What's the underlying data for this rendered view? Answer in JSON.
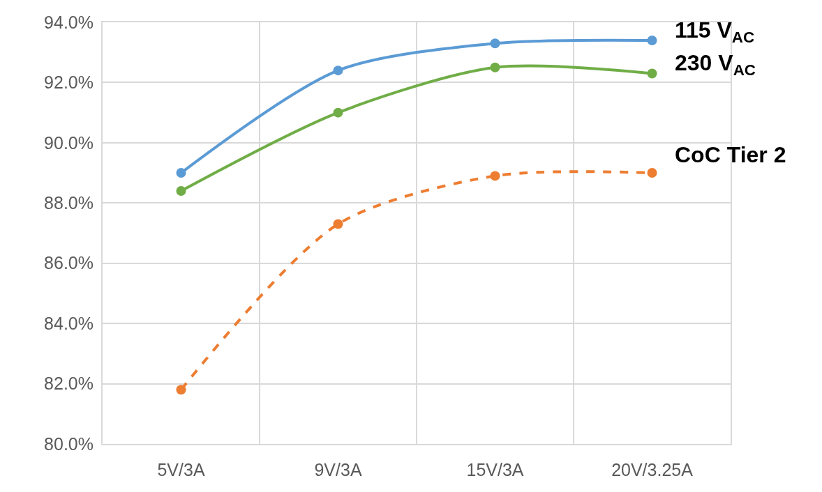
{
  "chart_data": {
    "type": "line",
    "categories": [
      "5V/3A",
      "9V/3A",
      "15V/3A",
      "20V/3.25A"
    ],
    "series": [
      {
        "name": "115 V$_{AC}$",
        "color": "#5b9bd5",
        "line_style": "solid",
        "values": [
          89.0,
          92.4,
          93.3,
          93.4
        ]
      },
      {
        "name": "230 V$_{AC}$",
        "color": "#70ad47",
        "line_style": "solid",
        "values": [
          88.4,
          91.0,
          92.5,
          92.3
        ]
      },
      {
        "name": "CoC Tier 2",
        "color": "#ed7d31",
        "line_style": "dashed",
        "values": [
          81.8,
          87.3,
          88.9,
          89.0
        ]
      }
    ],
    "ylim": [
      80,
      94
    ],
    "yticks": [
      {
        "value": 80,
        "label": "80.0%"
      },
      {
        "value": 82,
        "label": "82.0%"
      },
      {
        "value": 84,
        "label": "84.0%"
      },
      {
        "value": 86,
        "label": "86.0%"
      },
      {
        "value": 88,
        "label": "88.0%"
      },
      {
        "value": 90,
        "label": "90.0%"
      },
      {
        "value": 92,
        "label": "92.0%"
      },
      {
        "value": 94,
        "label": "94.0%"
      }
    ],
    "grid": true,
    "legend": false,
    "marker": "circle"
  }
}
